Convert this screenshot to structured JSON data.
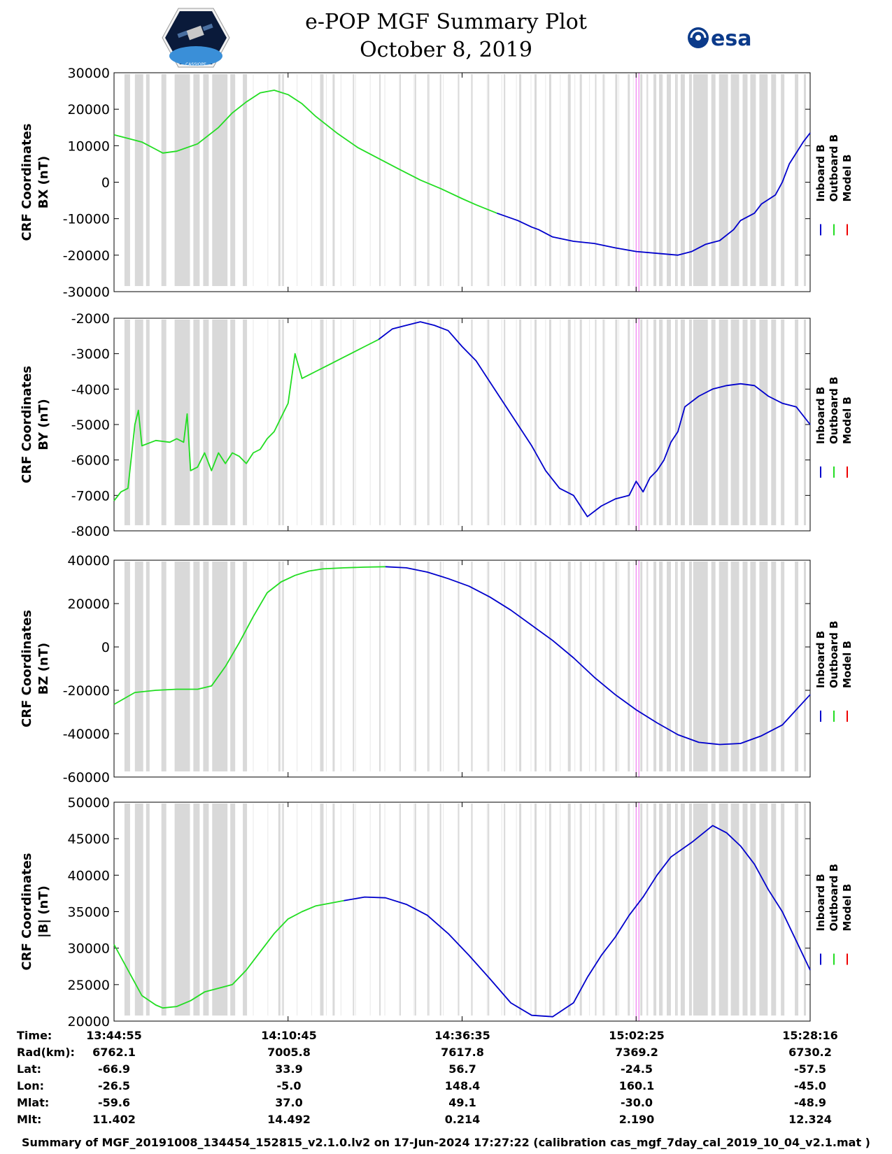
{
  "header": {
    "title": "e-POP MGF Summary Plot",
    "date": "October 8, 2019",
    "logo_left_text": "CASSIOPE",
    "logo_right_text": "esa"
  },
  "colors": {
    "inboard": "#0000cc",
    "outboard": "#22dd22",
    "model": "#ee0000",
    "gap_shade": "#d9d9d9",
    "marker": "#ee66ee"
  },
  "legend": [
    "Inboard B",
    "Outboard B",
    "Model B"
  ],
  "chart_data": [
    {
      "type": "line",
      "ylabel_line1": "CRF Coordinates",
      "ylabel_line2": "BX (nT)",
      "ylim": [
        -30000,
        30000
      ],
      "yticks": [
        -30000,
        -20000,
        -10000,
        0,
        10000,
        20000,
        30000
      ],
      "xlim": [
        0,
        100
      ],
      "series": [
        {
          "name": "Outboard B",
          "x": [
            0,
            2,
            4,
            6,
            7,
            9,
            12,
            15,
            17,
            19,
            21,
            23,
            25,
            27,
            29,
            32,
            35,
            38,
            41,
            44,
            47,
            50,
            52,
            55
          ],
          "y": [
            13000,
            12000,
            11000,
            9000,
            8000,
            8500,
            10500,
            15000,
            19000,
            22000,
            24500,
            25200,
            24000,
            21500,
            18000,
            13500,
            9500,
            6500,
            3500,
            600,
            -1800,
            -4500,
            -6200,
            -8500
          ]
        },
        {
          "name": "Inboard B",
          "x": [
            55,
            58,
            60,
            61,
            63,
            66,
            69,
            72,
            75,
            78,
            81,
            83,
            85,
            87,
            89,
            90,
            92,
            93,
            95,
            96,
            97,
            99,
            100
          ],
          "y": [
            -8500,
            -10500,
            -12300,
            -13000,
            -15000,
            -16200,
            -16800,
            -18000,
            -19000,
            -19500,
            -20000,
            -19000,
            -17000,
            -16000,
            -13000,
            -10500,
            -8500,
            -6000,
            -3500,
            0,
            5000,
            11000,
            13500
          ]
        }
      ],
      "ticks": [
        15,
        17,
        19,
        21,
        23,
        25,
        27,
        29,
        32,
        35,
        38,
        41,
        44,
        47,
        50,
        52,
        55,
        58,
        60,
        61,
        63,
        66,
        69,
        72,
        75,
        78,
        81,
        83,
        85,
        87,
        89,
        90,
        92,
        93,
        95,
        96,
        97,
        99,
        100
      ]
    },
    {
      "type": "line",
      "ylabel_line1": "CRF Coordinates",
      "ylabel_line2": "BY (nT)",
      "ylim": [
        -8000,
        -2000
      ],
      "yticks": [
        -8000,
        -7000,
        -6000,
        -5000,
        -4000,
        -3000,
        -2000
      ],
      "xlim": [
        0,
        100
      ],
      "series": [
        {
          "name": "Outboard B",
          "x": [
            0,
            1,
            2,
            3,
            3.5,
            4,
            6,
            8,
            9,
            10,
            10.5,
            11,
            12,
            13,
            14,
            15,
            16,
            17,
            18,
            19,
            20,
            21,
            22,
            23,
            24,
            25,
            26,
            27,
            28,
            29,
            30,
            31,
            32,
            33,
            34,
            35,
            36,
            37,
            38
          ],
          "y": [
            -7150,
            -6900,
            -6800,
            -5000,
            -4600,
            -5600,
            -5450,
            -5500,
            -5400,
            -5500,
            -4700,
            -6300,
            -6200,
            -5800,
            -6300,
            -5800,
            -6100,
            -5800,
            -5900,
            -6100,
            -5800,
            -5700,
            -5400,
            -5200,
            -4800,
            -4400,
            -3000,
            -3700,
            -3600,
            -3500,
            -3400,
            -3300,
            -3200,
            -3100,
            -3000,
            -2900,
            -2800,
            -2700,
            -2600
          ]
        },
        {
          "name": "Inboard B",
          "x": [
            38,
            40,
            42,
            44,
            46,
            48,
            50,
            52,
            54,
            56,
            58,
            60,
            62,
            64,
            66,
            68,
            70,
            72,
            74,
            75,
            76,
            77,
            78,
            79,
            80,
            81,
            82,
            84,
            86,
            88,
            90,
            92,
            94,
            96,
            98,
            100
          ],
          "y": [
            -2600,
            -2300,
            -2200,
            -2100,
            -2200,
            -2350,
            -2800,
            -3200,
            -3800,
            -4400,
            -5000,
            -5600,
            -6300,
            -6800,
            -7000,
            -7600,
            -7300,
            -7100,
            -7000,
            -6600,
            -6900,
            -6500,
            -6300,
            -6000,
            -5500,
            -5200,
            -4500,
            -4200,
            -4000,
            -3900,
            -3850,
            -3900,
            -4200,
            -4400,
            -4500,
            -5000
          ]
        }
      ]
    },
    {
      "type": "line",
      "ylabel_line1": "CRF Coordinates",
      "ylabel_line2": "BZ (nT)",
      "ylim": [
        -60000,
        40000
      ],
      "yticks": [
        -60000,
        -40000,
        -20000,
        0,
        20000,
        40000
      ],
      "xlim": [
        0,
        100
      ],
      "series": [
        {
          "name": "Outboard B",
          "x": [
            0,
            3,
            6,
            9,
            12,
            14,
            16,
            18,
            20,
            22,
            24,
            26,
            28,
            30,
            33,
            36,
            39
          ],
          "y": [
            -26500,
            -21000,
            -20000,
            -19500,
            -19500,
            -18000,
            -9000,
            2000,
            14000,
            25000,
            30000,
            33000,
            35000,
            36000,
            36500,
            36800,
            37000
          ]
        },
        {
          "name": "Inboard B",
          "x": [
            39,
            42,
            45,
            48,
            51,
            54,
            57,
            60,
            63,
            66,
            69,
            72,
            75,
            78,
            81,
            84,
            87,
            90,
            93,
            96,
            100
          ],
          "y": [
            37000,
            36500,
            34500,
            31500,
            28000,
            23000,
            17000,
            10000,
            3000,
            -5000,
            -14000,
            -22000,
            -29000,
            -35000,
            -40500,
            -44000,
            -45000,
            -44500,
            -41000,
            -36000,
            -22000
          ]
        }
      ]
    },
    {
      "type": "line",
      "ylabel_line1": "CRF Coordinates",
      "ylabel_line2": "|B| (nT)",
      "ylim": [
        20000,
        50000
      ],
      "yticks": [
        20000,
        25000,
        30000,
        35000,
        40000,
        45000,
        50000
      ],
      "xlim": [
        0,
        100
      ],
      "series": [
        {
          "name": "Outboard B",
          "x": [
            0,
            2,
            4,
            6,
            7,
            9,
            11,
            13,
            15,
            17,
            19,
            21,
            23,
            25,
            27,
            29,
            33
          ],
          "y": [
            30500,
            27000,
            23500,
            22200,
            21800,
            22000,
            22800,
            24000,
            24500,
            25000,
            27000,
            29500,
            32000,
            34000,
            35000,
            35800,
            36500
          ]
        },
        {
          "name": "Inboard B",
          "x": [
            33,
            36,
            39,
            42,
            45,
            48,
            51,
            54,
            57,
            60,
            63,
            66,
            68,
            70,
            72,
            74,
            76,
            78,
            80,
            83,
            86,
            88,
            90,
            92,
            94,
            96,
            98,
            100
          ],
          "y": [
            36500,
            37000,
            36900,
            36000,
            34500,
            32000,
            29000,
            25800,
            22500,
            20800,
            20600,
            22500,
            26000,
            29000,
            31500,
            34500,
            37000,
            40000,
            42500,
            44500,
            46800,
            45800,
            44000,
            41500,
            38000,
            35000,
            31000,
            27000
          ]
        }
      ]
    }
  ],
  "ephemeris": {
    "labels": [
      "Time:",
      "Rad(km):",
      "Lat:",
      "Lon:",
      "Mlat:",
      "Mlt:"
    ],
    "columns": [
      [
        "13:44:55",
        "6762.1",
        "-66.9",
        "-26.5",
        "-59.6",
        "11.402"
      ],
      [
        "14:10:45",
        "7005.8",
        "33.9",
        "-5.0",
        "37.0",
        "14.492"
      ],
      [
        "14:36:35",
        "7617.8",
        "56.7",
        "148.4",
        "49.1",
        "0.214"
      ],
      [
        "15:02:25",
        "7369.2",
        "-24.5",
        "160.1",
        "-30.0",
        "2.190"
      ],
      [
        "15:28:16",
        "6730.2",
        "-57.5",
        "-45.0",
        "-48.9",
        "12.324"
      ]
    ]
  },
  "footer": "Summary of MGF_20191008_134454_152815_v2.1.0.lv2 on 17-Jun-2024 17:27:22 (calibration cas_mgf_7day_cal_2019_10_04_v2.1.mat )"
}
